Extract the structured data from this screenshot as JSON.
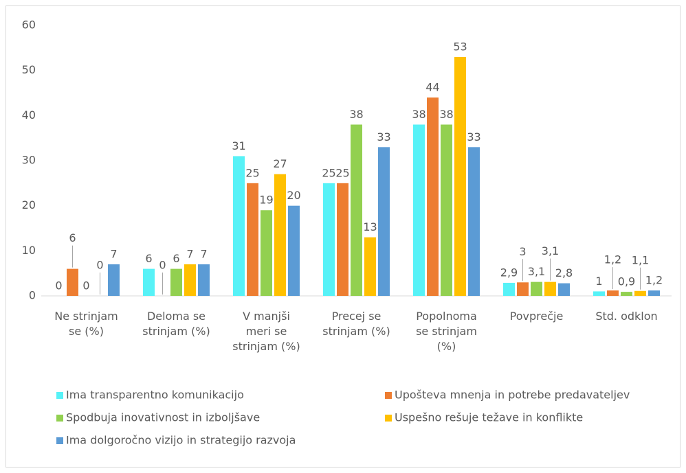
{
  "chart_data": {
    "type": "bar",
    "categories": [
      "Ne strinjam se (%)",
      "Deloma se strinjam (%)",
      "V manjši meri se strinjam (%)",
      "Precej se strinjam (%)",
      "Popolnoma se strinjam (%)",
      "Povprečje",
      "Std. odklon"
    ],
    "series": [
      {
        "name": "Ima transparentno komunikacijo",
        "color": "#57f2f7",
        "values": [
          0,
          6,
          31,
          25,
          38,
          2.9,
          1
        ],
        "value_labels": [
          "0",
          "6",
          "31",
          "25",
          "38",
          "2,9",
          "1"
        ]
      },
      {
        "name": "Upošteva mnenja in potrebe predavateljev",
        "color": "#ed7d31",
        "values": [
          6,
          0,
          25,
          25,
          44,
          3,
          1.2
        ],
        "value_labels": [
          "6",
          "0",
          "25",
          "25",
          "44",
          "3",
          "1,2"
        ]
      },
      {
        "name": "Spodbuja inovativnost in izboljšave",
        "color": "#92d050",
        "values": [
          0,
          6,
          19,
          38,
          38,
          3.1,
          0.9
        ],
        "value_labels": [
          "0",
          "6",
          "19",
          "38",
          "38",
          "3,1",
          "0,9"
        ]
      },
      {
        "name": "Uspešno rešuje težave in konflikte",
        "color": "#ffc000",
        "values": [
          0,
          7,
          27,
          13,
          53,
          3.1,
          1.1
        ],
        "value_labels": [
          "0",
          "7",
          "27",
          "13",
          "53",
          "3,1",
          "1,1"
        ]
      },
      {
        "name": "Ima dolgoročno vizijo in strategijo razvoja",
        "color": "#5b9bd5",
        "values": [
          7,
          7,
          20,
          33,
          33,
          2.8,
          1.2
        ],
        "value_labels": [
          "7",
          "7",
          "20",
          "33",
          "33",
          "2,8",
          "1,2"
        ]
      }
    ],
    "ylim": [
      0,
      60
    ],
    "yticks": [
      0,
      10,
      20,
      30,
      40,
      50,
      60
    ],
    "grid": false,
    "legend": "bottom"
  }
}
